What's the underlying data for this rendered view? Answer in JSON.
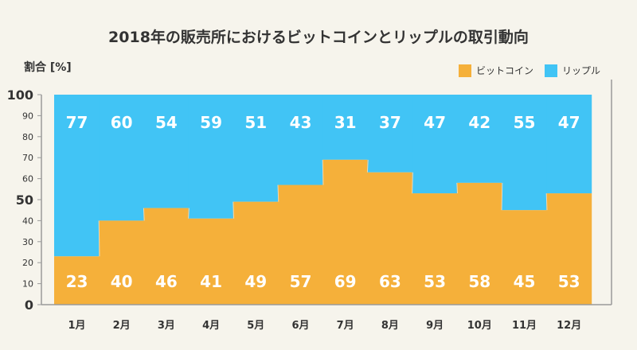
{
  "title": "2018年の販売所におけるビットコインとリップルの取引動向",
  "colors": {
    "bitcoin": "#f5b03a",
    "ripple": "#41c4f5",
    "background": "#f6f4ec",
    "axis": "#9a9a9a"
  },
  "chart_data": {
    "type": "bar",
    "stacked": true,
    "title": "2018年の販売所におけるビットコインとリップルの取引動向",
    "ylabel": "割合 [%]",
    "xlabel": "",
    "ylim": [
      0,
      100
    ],
    "yticks": [
      0,
      10,
      20,
      30,
      40,
      50,
      60,
      70,
      80,
      90,
      100
    ],
    "legend_position": "top-right",
    "categories": [
      "1月",
      "2月",
      "3月",
      "4月",
      "5月",
      "6月",
      "7月",
      "8月",
      "9月",
      "10月",
      "11月",
      "12月"
    ],
    "series": [
      {
        "name": "ビットコイン",
        "color": "#f5b03a",
        "values": [
          23,
          40,
          46,
          41,
          49,
          57,
          69,
          63,
          53,
          58,
          45,
          53
        ]
      },
      {
        "name": "リップル",
        "color": "#41c4f5",
        "values": [
          77,
          60,
          54,
          59,
          51,
          43,
          31,
          37,
          47,
          42,
          55,
          47
        ]
      }
    ]
  }
}
